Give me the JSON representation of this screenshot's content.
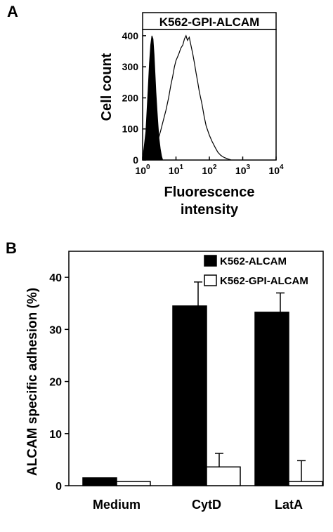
{
  "panels": {
    "a_label": "A",
    "b_label": "B"
  },
  "chart_data": [
    {
      "type": "area",
      "title": "K562-GPI-ALCAM",
      "xlabel_line1": "Fluorescence",
      "xlabel_line2": "intensity",
      "ylabel": "Cell count",
      "xscale": "log",
      "xlim": [
        1,
        10000
      ],
      "ylim": [
        0,
        420
      ],
      "yticks": [
        "0",
        "100",
        "200",
        "300",
        "400"
      ],
      "xticks": [
        {
          "base": "10",
          "exp": "0"
        },
        {
          "base": "10",
          "exp": "1"
        },
        {
          "base": "10",
          "exp": "2"
        },
        {
          "base": "10",
          "exp": "3"
        },
        {
          "base": "10",
          "exp": "4"
        }
      ],
      "series": [
        {
          "fill": "#000000",
          "x": [
            1.0,
            1.25,
            1.45,
            1.6,
            1.75,
            1.9,
            2.05,
            2.2,
            2.35,
            2.5,
            2.7,
            2.9,
            3.1,
            3.4,
            3.7,
            4.0
          ],
          "y": [
            0,
            90,
            220,
            310,
            370,
            400,
            390,
            340,
            280,
            220,
            160,
            110,
            70,
            35,
            12,
            0
          ]
        },
        {
          "fill": "none",
          "x": [
            1.0,
            1.5,
            2.0,
            2.5,
            3.0,
            3.5,
            4.0,
            5.0,
            6.0,
            7.0,
            8.0,
            9.0,
            10.0,
            12.0,
            14.0,
            16.0,
            18.0,
            20.0,
            22.0,
            25.0,
            28.0,
            32.0,
            36.0,
            40.0,
            45.0,
            50.0,
            60.0,
            70.0,
            80.0,
            100.0,
            120.0,
            150.0,
            180.0,
            220.0,
            280.0,
            350.0,
            450.0
          ],
          "y": [
            0,
            10,
            30,
            50,
            70,
            95,
            120,
            160,
            200,
            240,
            270,
            300,
            320,
            340,
            360,
            370,
            390,
            400,
            385,
            395,
            370,
            340,
            310,
            280,
            250,
            220,
            180,
            140,
            110,
            80,
            60,
            40,
            25,
            15,
            8,
            4,
            0
          ]
        }
      ]
    },
    {
      "type": "bar",
      "ylabel": "ALCAM specific adhesion (%)",
      "ylim": [
        0,
        45
      ],
      "yticks": [
        "0",
        "10",
        "20",
        "30",
        "40"
      ],
      "categories": [
        "Medium",
        "CytD",
        "LatA"
      ],
      "legend_position": "top-right",
      "series": [
        {
          "name": "K562-ALCAM",
          "color": "#000000",
          "values": [
            1.5,
            34.5,
            33.3
          ],
          "errors": [
            0,
            4.6,
            3.7
          ]
        },
        {
          "name": "K562-GPI-ALCAM",
          "color": "#ffffff",
          "values": [
            0.8,
            3.6,
            0.8
          ],
          "errors": [
            0,
            2.6,
            4.0
          ]
        }
      ]
    }
  ]
}
